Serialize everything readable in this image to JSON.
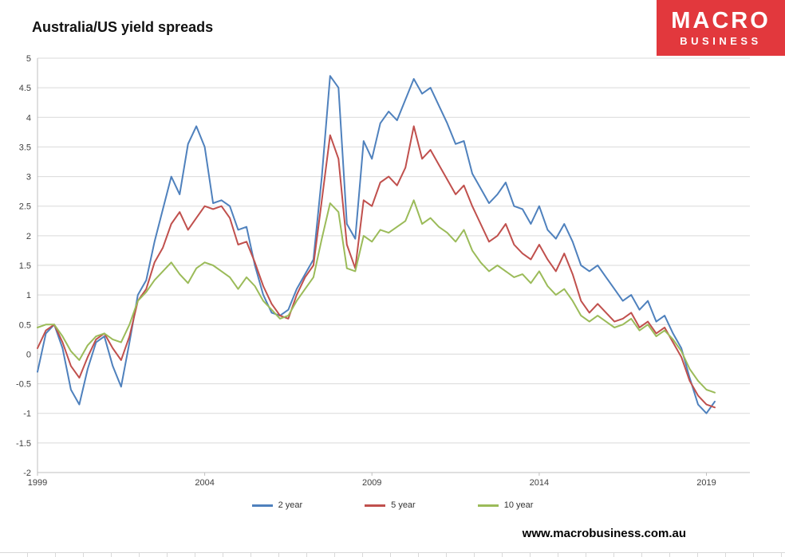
{
  "logo": {
    "line1": "MACRO",
    "line2": "BUSINESS",
    "bg_color": "#e2383d"
  },
  "footer": {
    "website": "www.macrobusiness.com.au"
  },
  "chart_data": {
    "type": "line",
    "title": "Australia/US yield spreads",
    "xlabel": "",
    "ylabel": "",
    "xlim": [
      1999,
      2020.3
    ],
    "ylim": [
      -2,
      5
    ],
    "x_ticks": [
      1999,
      2004,
      2009,
      2014,
      2019
    ],
    "y_ticks": [
      5,
      4.5,
      4,
      3.5,
      3,
      2.5,
      2,
      1.5,
      1,
      0.5,
      0,
      -0.5,
      -1,
      -1.5,
      -2
    ],
    "grid": "horizontal",
    "grid_color": "#d9d9d9",
    "legend_position": "bottom",
    "x_start": 1999,
    "x_step": 0.25,
    "x_unit": "year (quarterly samples)",
    "y_unit": "yield spread, percentage points",
    "series": [
      {
        "name": "2 year",
        "color": "#4F81BD",
        "values": [
          -0.3,
          0.35,
          0.5,
          0.1,
          -0.6,
          -0.85,
          -0.25,
          0.2,
          0.3,
          -0.2,
          -0.55,
          0.2,
          1.0,
          1.25,
          1.9,
          2.45,
          3.0,
          2.7,
          3.55,
          3.85,
          3.5,
          2.55,
          2.6,
          2.5,
          2.1,
          2.15,
          1.5,
          1.0,
          0.7,
          0.65,
          0.75,
          1.1,
          1.35,
          1.6,
          3.0,
          4.7,
          4.5,
          2.2,
          1.95,
          3.6,
          3.3,
          3.9,
          4.1,
          3.95,
          4.3,
          4.65,
          4.4,
          4.5,
          4.2,
          3.9,
          3.55,
          3.6,
          3.05,
          2.8,
          2.55,
          2.7,
          2.9,
          2.5,
          2.45,
          2.2,
          2.5,
          2.1,
          1.95,
          2.2,
          1.9,
          1.5,
          1.4,
          1.5,
          1.3,
          1.1,
          0.9,
          1.0,
          0.75,
          0.9,
          0.55,
          0.65,
          0.35,
          0.1,
          -0.4,
          -0.85,
          -1.0,
          -0.8
        ]
      },
      {
        "name": "5 year",
        "color": "#C0504D",
        "values": [
          0.1,
          0.4,
          0.5,
          0.2,
          -0.2,
          -0.4,
          -0.05,
          0.25,
          0.35,
          0.1,
          -0.1,
          0.3,
          0.9,
          1.1,
          1.55,
          1.8,
          2.2,
          2.4,
          2.1,
          2.3,
          2.5,
          2.45,
          2.5,
          2.3,
          1.85,
          1.9,
          1.55,
          1.15,
          0.85,
          0.65,
          0.6,
          1.0,
          1.3,
          1.5,
          2.6,
          3.7,
          3.3,
          1.85,
          1.45,
          2.6,
          2.5,
          2.9,
          3.0,
          2.85,
          3.15,
          3.85,
          3.3,
          3.45,
          3.2,
          2.95,
          2.7,
          2.85,
          2.5,
          2.2,
          1.9,
          2.0,
          2.2,
          1.85,
          1.7,
          1.6,
          1.85,
          1.6,
          1.4,
          1.7,
          1.35,
          0.9,
          0.7,
          0.85,
          0.7,
          0.55,
          0.6,
          0.7,
          0.45,
          0.55,
          0.35,
          0.45,
          0.2,
          -0.05,
          -0.45,
          -0.7,
          -0.85,
          -0.9
        ]
      },
      {
        "name": "10 year",
        "color": "#9BBB59",
        "values": [
          0.45,
          0.5,
          0.5,
          0.3,
          0.05,
          -0.1,
          0.15,
          0.3,
          0.35,
          0.25,
          0.2,
          0.5,
          0.9,
          1.05,
          1.25,
          1.4,
          1.55,
          1.35,
          1.2,
          1.45,
          1.55,
          1.5,
          1.4,
          1.3,
          1.1,
          1.3,
          1.15,
          0.9,
          0.75,
          0.6,
          0.65,
          0.9,
          1.1,
          1.3,
          1.95,
          2.55,
          2.4,
          1.45,
          1.4,
          2.0,
          1.9,
          2.1,
          2.05,
          2.15,
          2.25,
          2.6,
          2.2,
          2.3,
          2.15,
          2.05,
          1.9,
          2.1,
          1.75,
          1.55,
          1.4,
          1.5,
          1.4,
          1.3,
          1.35,
          1.2,
          1.4,
          1.15,
          1.0,
          1.1,
          0.9,
          0.65,
          0.55,
          0.65,
          0.55,
          0.45,
          0.5,
          0.6,
          0.4,
          0.5,
          0.3,
          0.4,
          0.25,
          0.05,
          -0.25,
          -0.45,
          -0.6,
          -0.65
        ]
      }
    ]
  }
}
